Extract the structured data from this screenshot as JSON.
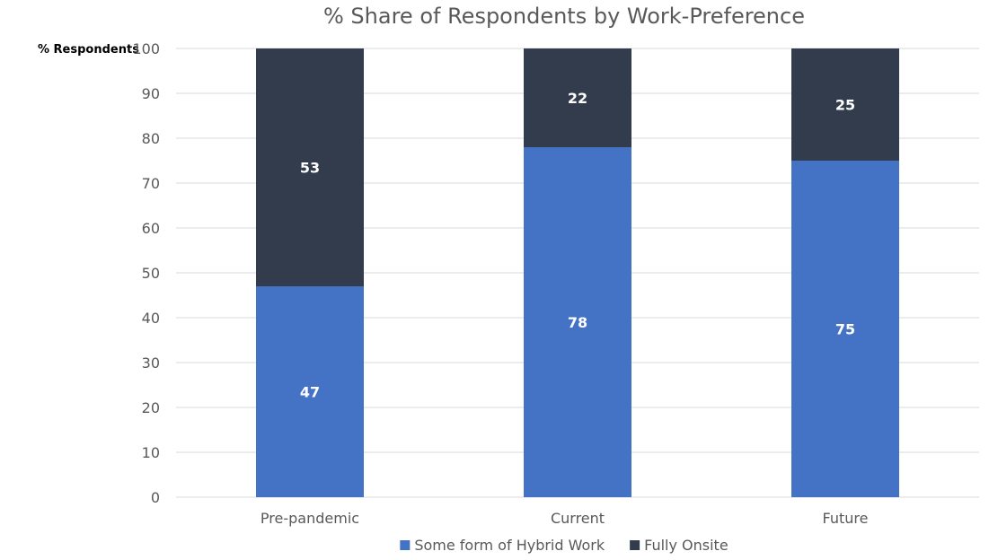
{
  "chart_data": {
    "type": "bar",
    "stacked": true,
    "title": "% Share of Respondents by Work-Preference",
    "ylabel": "% Respondents",
    "xlabel": "",
    "ylim": [
      0,
      100
    ],
    "yticks": [
      "0",
      "10",
      "20",
      "30",
      "40",
      "50",
      "60",
      "70",
      "80",
      "90",
      "100"
    ],
    "categories": [
      "Pre-pandemic",
      "Current",
      "Future"
    ],
    "series": [
      {
        "name": "Some form of Hybrid Work",
        "values": [
          47,
          78,
          75
        ],
        "color": "#4472c4"
      },
      {
        "name": "Fully Onsite",
        "values": [
          53,
          22,
          25
        ],
        "color": "#323c4d"
      }
    ],
    "data_labels": true,
    "grid": true,
    "legend_position": "bottom"
  }
}
